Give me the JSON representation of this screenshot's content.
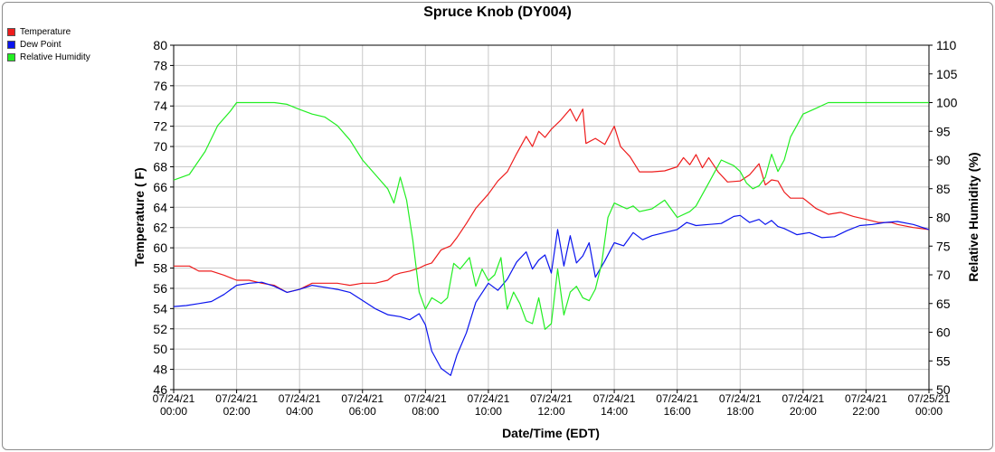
{
  "chart_data": {
    "type": "line",
    "title": "Spruce Knob (DY004)",
    "xlabel": "Date/Time (EDT)",
    "ylabel": "Temperature ( F)",
    "y2label": "Relative Humidity (%)",
    "ylim": [
      46,
      80
    ],
    "y2lim": [
      50,
      110
    ],
    "yticks": [
      "80",
      "78",
      "76",
      "74",
      "72",
      "70",
      "68",
      "66",
      "64",
      "62",
      "60",
      "58",
      "56",
      "54",
      "52",
      "50",
      "48",
      "46"
    ],
    "y2ticks": [
      "110",
      "105",
      "100",
      "95",
      "90",
      "85",
      "80",
      "75",
      "70",
      "65",
      "60",
      "55",
      "50"
    ],
    "xlim": [
      0,
      24
    ],
    "xticks": [
      {
        "date": "07/24/21",
        "time": "00:00"
      },
      {
        "date": "07/24/21",
        "time": "02:00"
      },
      {
        "date": "07/24/21",
        "time": "04:00"
      },
      {
        "date": "07/24/21",
        "time": "06:00"
      },
      {
        "date": "07/24/21",
        "time": "08:00"
      },
      {
        "date": "07/24/21",
        "time": "10:00"
      },
      {
        "date": "07/24/21",
        "time": "12:00"
      },
      {
        "date": "07/24/21",
        "time": "14:00"
      },
      {
        "date": "07/24/21",
        "time": "16:00"
      },
      {
        "date": "07/24/21",
        "time": "18:00"
      },
      {
        "date": "07/24/21",
        "time": "20:00"
      },
      {
        "date": "07/24/21",
        "time": "22:00"
      },
      {
        "date": "07/25/21",
        "time": "00:00"
      }
    ],
    "grid": true,
    "legend_position": "top-left",
    "series": [
      {
        "name": "Temperature",
        "color": "#ee1c1c",
        "axis": "left",
        "x": [
          0,
          0.5,
          0.8,
          1.2,
          1.6,
          2.0,
          2.4,
          2.8,
          3.2,
          3.6,
          4.0,
          4.4,
          4.8,
          5.2,
          5.6,
          6.0,
          6.4,
          6.8,
          7.0,
          7.2,
          7.5,
          7.8,
          8.0,
          8.2,
          8.5,
          8.8,
          9.0,
          9.3,
          9.6,
          10.0,
          10.3,
          10.6,
          10.9,
          11.2,
          11.4,
          11.6,
          11.8,
          12.0,
          12.3,
          12.6,
          12.8,
          13.0,
          13.1,
          13.4,
          13.7,
          14.0,
          14.2,
          14.5,
          14.8,
          15.2,
          15.6,
          16.0,
          16.2,
          16.4,
          16.6,
          16.8,
          17.0,
          17.3,
          17.6,
          18.0,
          18.3,
          18.6,
          18.8,
          19.0,
          19.2,
          19.4,
          19.6,
          20.0,
          20.4,
          20.8,
          21.2,
          21.6,
          22.0,
          22.4,
          22.8,
          23.0,
          23.5,
          24.0
        ],
        "values": [
          58.2,
          58.2,
          57.7,
          57.7,
          57.3,
          56.8,
          56.8,
          56.5,
          56.3,
          55.6,
          55.9,
          56.5,
          56.5,
          56.5,
          56.3,
          56.5,
          56.5,
          56.8,
          57.3,
          57.5,
          57.7,
          58.0,
          58.3,
          58.5,
          59.8,
          60.2,
          61.0,
          62.4,
          63.9,
          65.3,
          66.6,
          67.5,
          69.3,
          71.0,
          70.0,
          71.5,
          70.9,
          71.7,
          72.6,
          73.7,
          72.5,
          73.7,
          70.3,
          70.8,
          70.2,
          72.0,
          70.0,
          69.0,
          67.5,
          67.5,
          67.6,
          68.0,
          68.9,
          68.2,
          69.2,
          67.9,
          68.9,
          67.5,
          66.5,
          66.6,
          67.2,
          68.3,
          66.2,
          66.7,
          66.6,
          65.5,
          64.9,
          64.9,
          63.9,
          63.3,
          63.5,
          63.1,
          62.8,
          62.5,
          62.5,
          62.3,
          62.0,
          61.8
        ]
      },
      {
        "name": "Dew Point",
        "color": "#0a14ee",
        "axis": "left",
        "x": [
          0,
          0.4,
          0.8,
          1.2,
          1.6,
          2.0,
          2.4,
          2.8,
          3.2,
          3.6,
          4.0,
          4.4,
          4.8,
          5.2,
          5.6,
          6.0,
          6.4,
          6.8,
          7.2,
          7.5,
          7.8,
          8.0,
          8.2,
          8.5,
          8.8,
          9.0,
          9.3,
          9.6,
          10.0,
          10.3,
          10.6,
          10.9,
          11.2,
          11.4,
          11.6,
          11.8,
          12.0,
          12.2,
          12.4,
          12.6,
          12.8,
          13.0,
          13.2,
          13.4,
          13.7,
          14.0,
          14.3,
          14.6,
          14.9,
          15.2,
          15.6,
          16.0,
          16.3,
          16.6,
          17.0,
          17.4,
          17.8,
          18.0,
          18.3,
          18.6,
          18.8,
          19.0,
          19.2,
          19.4,
          19.8,
          20.2,
          20.6,
          21.0,
          21.4,
          21.8,
          22.2,
          22.6,
          23.0,
          23.5,
          24.0
        ],
        "values": [
          54.2,
          54.3,
          54.5,
          54.7,
          55.4,
          56.3,
          56.5,
          56.6,
          56.2,
          55.6,
          55.9,
          56.3,
          56.1,
          55.9,
          55.6,
          54.8,
          54.0,
          53.4,
          53.2,
          52.9,
          53.5,
          52.4,
          49.8,
          48.1,
          47.4,
          49.4,
          51.6,
          54.6,
          56.5,
          55.8,
          56.9,
          58.6,
          59.6,
          57.9,
          58.8,
          59.3,
          57.5,
          61.8,
          58.2,
          61.2,
          58.5,
          59.2,
          60.5,
          57.1,
          58.7,
          60.5,
          60.2,
          61.5,
          60.8,
          61.2,
          61.5,
          61.8,
          62.5,
          62.2,
          62.3,
          62.4,
          63.1,
          63.2,
          62.5,
          62.8,
          62.3,
          62.7,
          62.1,
          61.9,
          61.3,
          61.5,
          61.0,
          61.1,
          61.7,
          62.2,
          62.3,
          62.5,
          62.6,
          62.3,
          61.8
        ]
      },
      {
        "name": "Relative Humidity",
        "color": "#22ee22",
        "axis": "right",
        "x": [
          0,
          0.5,
          1.0,
          1.4,
          1.8,
          2.0,
          2.4,
          2.8,
          3.2,
          3.6,
          4.0,
          4.4,
          4.8,
          5.2,
          5.6,
          6.0,
          6.4,
          6.8,
          7.0,
          7.2,
          7.4,
          7.6,
          7.8,
          8.0,
          8.2,
          8.5,
          8.7,
          8.9,
          9.1,
          9.4,
          9.6,
          9.8,
          10.0,
          10.2,
          10.4,
          10.6,
          10.8,
          11.0,
          11.2,
          11.4,
          11.6,
          11.8,
          12.0,
          12.2,
          12.4,
          12.6,
          12.8,
          13.0,
          13.2,
          13.4,
          13.6,
          13.8,
          14.0,
          14.2,
          14.4,
          14.6,
          14.8,
          15.2,
          15.6,
          16.0,
          16.4,
          16.6,
          16.8,
          17.0,
          17.2,
          17.4,
          17.8,
          18.0,
          18.2,
          18.4,
          18.6,
          18.8,
          19.0,
          19.2,
          19.4,
          19.6,
          19.8,
          20.0,
          20.4,
          20.8,
          21.2,
          21.6,
          22.0,
          22.4,
          22.8,
          23.0,
          23.5,
          24.0
        ],
        "values": [
          86.5,
          87.5,
          91.5,
          96.0,
          98.5,
          100,
          100,
          100,
          100,
          99.7,
          98.8,
          98.0,
          97.5,
          96.0,
          93.5,
          90.0,
          87.5,
          85.0,
          82.5,
          87.0,
          83.0,
          76.0,
          67.0,
          64.0,
          66.0,
          65.0,
          66.0,
          72.0,
          71.0,
          73.0,
          68.0,
          71.0,
          69.0,
          70.0,
          73.0,
          64.0,
          67.0,
          65.0,
          62.0,
          61.5,
          66.0,
          60.5,
          61.5,
          71.0,
          63.0,
          67.0,
          68.0,
          66.0,
          65.5,
          67.5,
          72.0,
          80.0,
          82.5,
          82.0,
          81.5,
          82.0,
          81.0,
          81.5,
          83.0,
          80.0,
          81.0,
          82.0,
          84.0,
          86.0,
          88.0,
          90.0,
          89.0,
          88.0,
          86.0,
          85.0,
          85.5,
          87.0,
          91.0,
          88.0,
          90.0,
          94.0,
          96.0,
          98.0,
          99.0,
          100,
          100,
          100,
          100,
          100,
          100,
          100,
          100,
          100
        ]
      }
    ]
  }
}
